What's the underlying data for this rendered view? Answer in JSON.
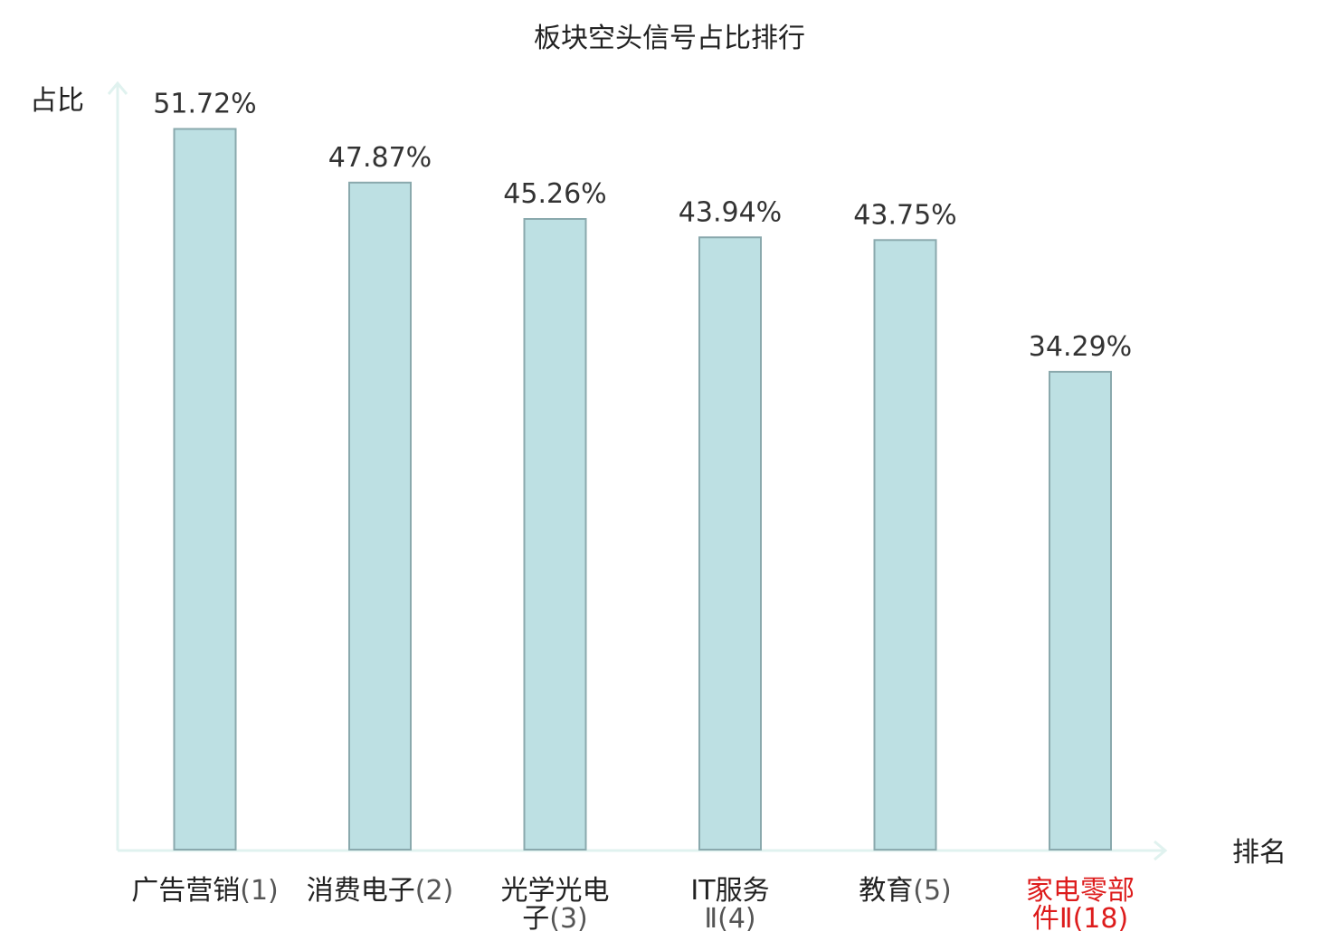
{
  "chart_data": {
    "type": "bar",
    "title": "板块空头信号占比排行",
    "ylabel": "占比",
    "xlabel": "排名",
    "ylim": [
      0,
      55
    ],
    "categories": [
      {
        "lines": [
          [
            "广告营销",
            "(1)"
          ]
        ],
        "highlight": false
      },
      {
        "lines": [
          [
            "消费电子",
            "(2)"
          ]
        ],
        "highlight": false
      },
      {
        "lines": [
          [
            "光学光电",
            ""
          ],
          [
            "子",
            "(3)"
          ]
        ],
        "highlight": false
      },
      {
        "lines": [
          [
            "IT服务",
            ""
          ],
          [
            "",
            "Ⅱ(4)"
          ]
        ],
        "highlight": false
      },
      {
        "lines": [
          [
            "教育",
            "(5)"
          ]
        ],
        "highlight": false
      },
      {
        "lines": [
          [
            "家电零部",
            ""
          ],
          [
            "件",
            "Ⅱ(18)"
          ]
        ],
        "highlight": true
      }
    ],
    "values": [
      51.72,
      47.87,
      45.26,
      43.94,
      43.75,
      34.29
    ],
    "value_labels": [
      "51.72%",
      "47.87%",
      "45.26%",
      "43.94%",
      "43.75%",
      "34.29%"
    ],
    "grid": false,
    "legend": "none"
  },
  "colors": {
    "bar_fill": "#bde0e3",
    "bar_stroke": "#8aa9ad",
    "axis": "#e0f2ef",
    "highlight": "#dd1c1c"
  }
}
